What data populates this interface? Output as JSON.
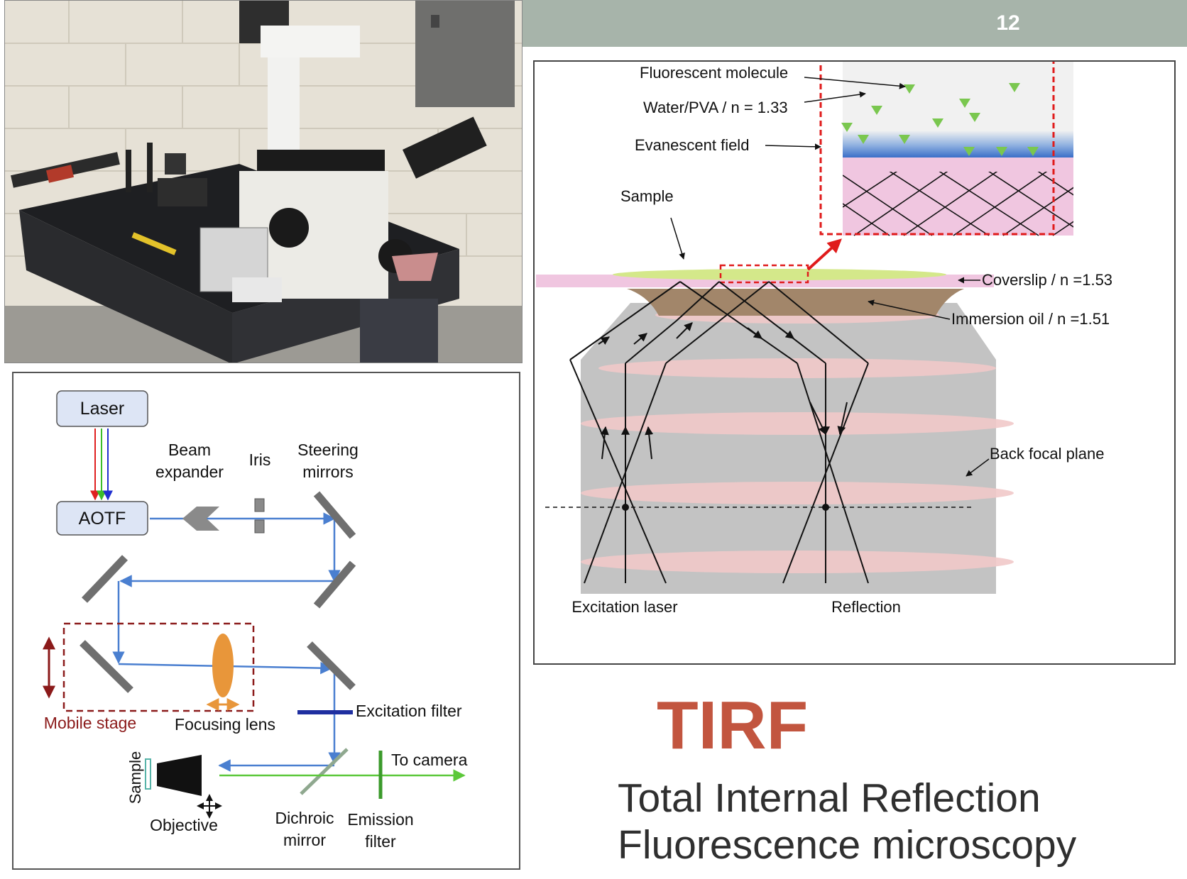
{
  "slide": {
    "page_number": "12"
  },
  "schematic": {
    "laser": "Laser",
    "aotf": "AOTF",
    "beam_expander": [
      "Beam",
      "expander"
    ],
    "iris": "Iris",
    "steering_mirrors": [
      "Steering",
      "mirrors"
    ],
    "mobile_stage": "Mobile stage",
    "focusing_lens": "Focusing lens",
    "excitation_filter": "Excitation filter",
    "to_camera": "To camera",
    "sample": "Sample",
    "objective": "Objective",
    "dichroic_mirror": [
      "Dichroic",
      "mirror"
    ],
    "emission_filter": [
      "Emission",
      "filter"
    ]
  },
  "tirf_diagram": {
    "fluorescent_molecule": "Fluorescent molecule",
    "water_pva": "Water/PVA  / n = 1.33",
    "evanescent_field": "Evanescent field",
    "sample": "Sample",
    "coverslip": "Coverslip / n =1.53",
    "immersion_oil": "Immersion  oil / n =1.51",
    "back_focal_plane": "Back focal plane",
    "excitation_laser": "Excitation laser",
    "reflection": "Reflection"
  },
  "title": "TIRF",
  "subtitle_lines": [
    "Total Internal Reflection",
    "Fluorescence microscopy"
  ],
  "colors": {
    "title": "#c2553f",
    "header_bar": "#a7b4aa",
    "beam": "#4a7fd0",
    "emission": "#5cc83a",
    "mobile_stage": "#8b1a1a",
    "lens": "#e8963a",
    "highlight_box": "#e02020"
  }
}
